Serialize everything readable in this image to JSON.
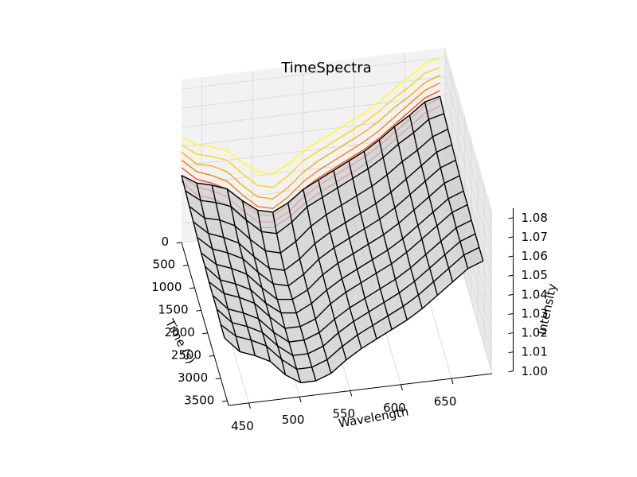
{
  "chart_data": {
    "type": "3d-surface",
    "title": "TimeSpectra",
    "xlabel": "Wavelength",
    "ylabel": "Time (s)",
    "zlabel": "Intensity",
    "x_ticks": [
      "450",
      "500",
      "550",
      "600",
      "650"
    ],
    "y_ticks": [
      "0",
      "500",
      "1000",
      "1500",
      "2000",
      "2500",
      "3000",
      "3500"
    ],
    "z_ticks": [
      "1.00",
      "1.01",
      "1.02",
      "1.03",
      "1.04",
      "1.05",
      "1.06",
      "1.07",
      "1.08"
    ],
    "xlim": [
      430,
      690
    ],
    "ylim": [
      0,
      3600
    ],
    "zlim": [
      1.0,
      1.085
    ],
    "grid": true,
    "surface": {
      "wavelength": [
        430,
        445,
        460,
        475,
        490,
        505,
        520,
        535,
        550,
        565,
        580,
        595,
        610,
        625,
        640,
        655,
        670,
        685
      ],
      "time": [
        0,
        300,
        600,
        900,
        1200,
        1500,
        1800,
        2100,
        2400,
        2700,
        3000,
        3300
      ],
      "intensity_rows": [
        [
          1.035,
          1.03,
          1.028,
          1.025,
          1.018,
          1.012,
          1.01,
          1.014,
          1.02,
          1.024,
          1.028,
          1.032,
          1.036,
          1.041,
          1.047,
          1.052,
          1.058,
          1.06
        ],
        [
          1.034,
          1.028,
          1.026,
          1.023,
          1.015,
          1.008,
          1.006,
          1.011,
          1.018,
          1.022,
          1.026,
          1.03,
          1.034,
          1.039,
          1.045,
          1.05,
          1.056,
          1.058
        ],
        [
          1.033,
          1.026,
          1.024,
          1.02,
          1.012,
          1.005,
          1.003,
          1.008,
          1.015,
          1.02,
          1.024,
          1.028,
          1.032,
          1.037,
          1.043,
          1.048,
          1.054,
          1.057
        ],
        [
          1.032,
          1.025,
          1.022,
          1.018,
          1.01,
          1.003,
          1.001,
          1.006,
          1.013,
          1.018,
          1.022,
          1.026,
          1.03,
          1.035,
          1.041,
          1.047,
          1.053,
          1.056
        ],
        [
          1.031,
          1.024,
          1.021,
          1.017,
          1.009,
          1.002,
          1.0,
          1.005,
          1.012,
          1.017,
          1.021,
          1.025,
          1.029,
          1.034,
          1.04,
          1.046,
          1.052,
          1.055
        ],
        [
          1.03,
          1.023,
          1.02,
          1.016,
          1.008,
          1.001,
          1.0,
          1.004,
          1.011,
          1.016,
          1.02,
          1.024,
          1.028,
          1.033,
          1.039,
          1.045,
          1.051,
          1.054
        ],
        [
          1.03,
          1.022,
          1.019,
          1.015,
          1.007,
          1.001,
          1.0,
          1.004,
          1.01,
          1.015,
          1.019,
          1.023,
          1.027,
          1.032,
          1.038,
          1.044,
          1.05,
          1.053
        ],
        [
          1.029,
          1.022,
          1.019,
          1.015,
          1.007,
          1.0,
          1.0,
          1.003,
          1.01,
          1.015,
          1.019,
          1.023,
          1.027,
          1.032,
          1.038,
          1.044,
          1.05,
          1.053
        ],
        [
          1.029,
          1.021,
          1.018,
          1.014,
          1.006,
          1.0,
          1.0,
          1.003,
          1.009,
          1.014,
          1.018,
          1.022,
          1.026,
          1.031,
          1.037,
          1.043,
          1.049,
          1.052
        ],
        [
          1.029,
          1.021,
          1.018,
          1.014,
          1.006,
          1.0,
          1.0,
          1.003,
          1.009,
          1.014,
          1.018,
          1.022,
          1.026,
          1.031,
          1.037,
          1.043,
          1.049,
          1.052
        ],
        [
          1.028,
          1.021,
          1.018,
          1.014,
          1.006,
          1.0,
          1.0,
          1.003,
          1.009,
          1.014,
          1.018,
          1.022,
          1.026,
          1.031,
          1.037,
          1.043,
          1.049,
          1.052
        ],
        [
          1.028,
          1.02,
          1.017,
          1.013,
          1.005,
          1.0,
          1.0,
          1.003,
          1.009,
          1.014,
          1.018,
          1.022,
          1.026,
          1.031,
          1.037,
          1.043,
          1.049,
          1.052
        ]
      ]
    },
    "projection_colors": [
      "#ffff00",
      "#ffd200",
      "#ffa500",
      "#ff7a00",
      "#ff4500",
      "#ff0000",
      "#d40000"
    ],
    "colors": {
      "surface_fill": "#d0d0d0",
      "surface_wire": "#000000",
      "pane_back": "#f2f2f2",
      "pane_side": "#e9e9e9",
      "gridline": "#dcdcdc",
      "axis_line": "#000000"
    }
  }
}
